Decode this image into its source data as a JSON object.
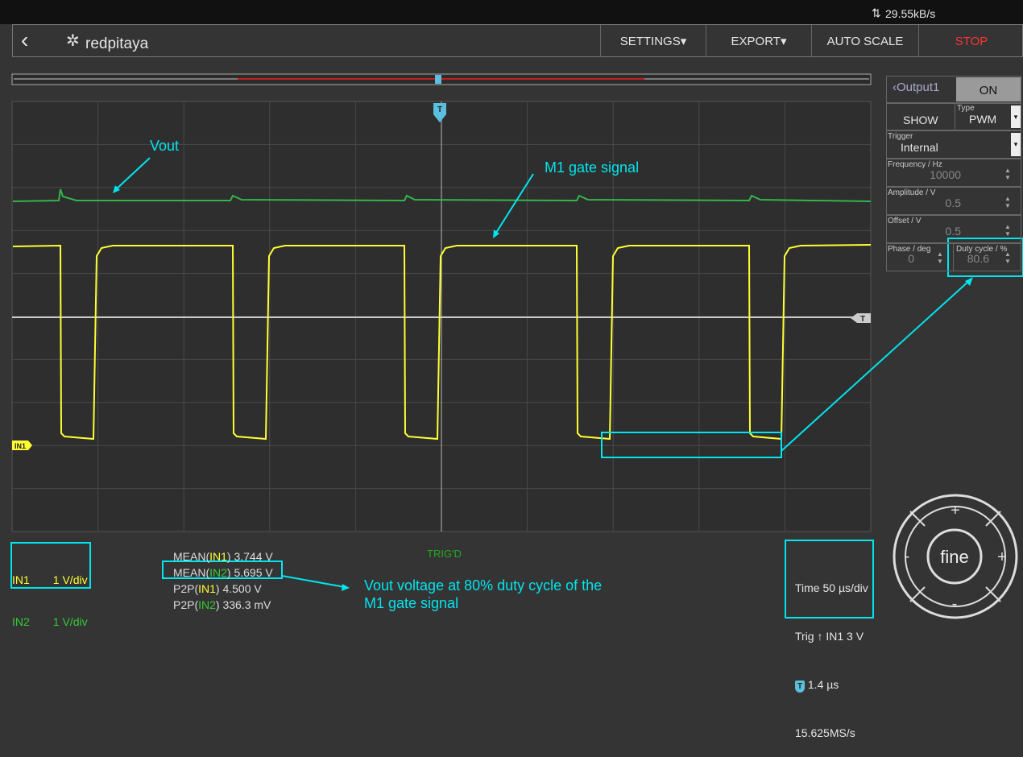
{
  "status": {
    "rate": "29.55kB/s"
  },
  "toolbar": {
    "brand": "redpitaya",
    "buttons": [
      "SETTINGS",
      "EXPORT",
      "AUTO SCALE",
      "STOP"
    ]
  },
  "plot": {
    "time_marker": "T",
    "level_marker": "T",
    "channel_marker": "IN1",
    "status": "TRIG'D"
  },
  "annotations": {
    "vout": "Vout",
    "gate": "M1 gate signal",
    "note": [
      "Vout voltage at 80%  duty cycle of the",
      "M1 gate signal"
    ]
  },
  "output_panel": {
    "title": "Output1",
    "state": "ON",
    "show": "SHOW",
    "type": {
      "label": "Type",
      "value": "PWM"
    },
    "trigger": {
      "label": "Trigger",
      "value": "Internal"
    },
    "frequency": {
      "label": "Frequency / Hz",
      "value": "10000"
    },
    "amplitude": {
      "label": "Amplitude / V",
      "value": "0.5"
    },
    "offset": {
      "label": "Offset / V",
      "value": "0.5"
    },
    "phase": {
      "label": "Phase / deg",
      "value": "0"
    },
    "duty": {
      "label": "Duty cycle / %",
      "value": "80.6"
    }
  },
  "channels": [
    {
      "name": "IN1",
      "scale": "1 V/div"
    },
    {
      "name": "IN2",
      "scale": "1 V/div"
    }
  ],
  "measurements": [
    {
      "prefix": "MEAN(",
      "channel": "IN1",
      "rest": ") 3.744 V"
    },
    {
      "prefix": "MEAN(",
      "channel": "IN2",
      "rest": ") 5.695 V"
    },
    {
      "prefix": "P2P(",
      "channel": "IN1",
      "rest": ") 4.500 V"
    },
    {
      "prefix": "P2P(",
      "channel": "IN2",
      "rest": ") 336.3 mV"
    }
  ],
  "timebase": {
    "time": "Time 50 µs/div",
    "trig": "Trig ↑ IN1 3 V",
    "badge": "T",
    "delay": "1.4 µs",
    "rate": "15.625MS/s"
  },
  "fine_control": {
    "up": "+",
    "left": "-",
    "center": "fine",
    "right": "+",
    "down": "-"
  }
}
